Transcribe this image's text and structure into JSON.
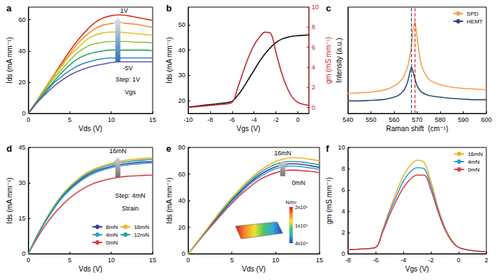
{
  "chart_data": [
    {
      "type": "line",
      "title": "a",
      "x_label": "Vds (V)",
      "y_label": "Ids (mA mm⁻¹)",
      "xlim": [
        0,
        15
      ],
      "xticks": [
        0,
        5,
        10,
        15
      ],
      "ylim": [
        0,
        68
      ],
      "yticks": [
        0,
        20,
        40,
        60
      ],
      "annotations": [
        "1V",
        "-5V",
        "Step: 1V",
        "Vgs"
      ],
      "x": [
        0,
        1,
        2,
        3,
        4,
        5,
        6,
        7,
        8,
        9,
        10,
        11,
        12,
        13,
        14,
        15
      ],
      "series": [
        {
          "color": "#d7301f",
          "values": [
            0,
            8,
            16,
            24,
            32,
            40,
            47,
            53,
            58,
            61,
            62.5,
            63,
            62.5,
            61.5,
            60.5,
            59.5
          ]
        },
        {
          "color": "#f08c2a",
          "values": [
            0,
            8,
            16,
            24,
            31,
            38,
            45,
            50,
            54,
            56.5,
            57.5,
            58,
            57.5,
            57,
            56,
            55
          ]
        },
        {
          "color": "#e8c21c",
          "values": [
            0,
            8,
            15.5,
            23,
            30,
            37,
            42,
            47,
            50,
            51.5,
            52,
            52,
            51.5,
            51,
            50.5,
            50
          ]
        },
        {
          "color": "#8cc63f",
          "values": [
            0,
            7.5,
            15,
            22,
            28,
            34,
            39,
            42.5,
            44.5,
            45.5,
            46,
            46,
            46,
            45.5,
            45.5,
            45
          ]
        },
        {
          "color": "#2ca25f",
          "values": [
            0,
            7,
            14,
            20,
            26,
            31,
            35,
            37.5,
            39,
            40,
            40.5,
            40.5,
            40.5,
            40.5,
            40.5,
            40
          ]
        },
        {
          "color": "#2b8cbe",
          "values": [
            0,
            7,
            13,
            19,
            23.5,
            27.5,
            30.5,
            32.5,
            34,
            35,
            35.5,
            35.5,
            35.5,
            35.5,
            35.5,
            35.5
          ]
        },
        {
          "color": "#6a51a3",
          "values": [
            0,
            6.5,
            12,
            17,
            21,
            24.5,
            27,
            29,
            30.5,
            31.5,
            32.5,
            33,
            33,
            33,
            33,
            33
          ]
        }
      ]
    },
    {
      "type": "line",
      "title": "b",
      "x_label": "Vgs (V)",
      "y_label": "Ids (mA mm⁻¹)",
      "y2_label": "gm (mS mm⁻¹)",
      "xlim": [
        -10,
        1
      ],
      "xticks": [
        -10,
        -8,
        -6,
        -4,
        -2,
        0
      ],
      "ylim": [
        15,
        57
      ],
      "yticks": [
        20,
        30,
        40,
        50
      ],
      "y2lim": [
        -0.6,
        10
      ],
      "y2ticks": [
        0,
        2,
        4,
        6,
        8,
        10
      ],
      "x": [
        -10,
        -9,
        -8,
        -7,
        -6,
        -5.5,
        -5,
        -4.5,
        -4,
        -3.5,
        -3,
        -2.5,
        -2,
        -1.5,
        -1,
        -0.5,
        0,
        1
      ],
      "series": [
        {
          "color": "#111111",
          "values": [
            17.5,
            18,
            18.5,
            19,
            19.8,
            22,
            25,
            28.5,
            32,
            35.5,
            38.5,
            41,
            43,
            44.3,
            45,
            45.5,
            45.7,
            46
          ]
        },
        {
          "color": "#c0282d",
          "axis": "y2",
          "values": [
            0,
            0.1,
            0.2,
            0.3,
            0.5,
            1.9,
            3.5,
            5,
            6.2,
            7,
            7.5,
            7.4,
            5.5,
            3.5,
            2,
            1,
            0.5,
            0.2
          ]
        }
      ]
    },
    {
      "type": "line",
      "title": "c",
      "x_label": "Raman shift  (cm⁻¹)",
      "y_label": "Intensity (a.u.)",
      "xlim": [
        540,
        600
      ],
      "xticks": [
        540,
        550,
        560,
        570,
        580,
        590,
        600
      ],
      "ylim": [
        0.5,
        9
      ],
      "tick_labels": "x",
      "legend": "top right",
      "vlines": [
        {
          "x": 567.6,
          "color": "#2e4a7d",
          "line_style": "dashed"
        },
        {
          "x": 569,
          "color": "#d62728",
          "line_style": "dashed"
        }
      ],
      "x": [
        540,
        545,
        550,
        555,
        558,
        560,
        562,
        564,
        565,
        566,
        567,
        567.6,
        568,
        569,
        570,
        571,
        572,
        574,
        576,
        580,
        585,
        590,
        595,
        600
      ],
      "series": [
        {
          "name": "SPD",
          "color": "#f5a04a",
          "values": [
            2.1,
            2.15,
            2.2,
            2.35,
            2.5,
            2.7,
            2.95,
            3.4,
            3.8,
            4.3,
            5.3,
            6.0,
            6.9,
            7.8,
            6.6,
            5.2,
            4.3,
            3.5,
            3.1,
            2.8,
            2.6,
            2.5,
            2.45,
            2.4
          ]
        },
        {
          "name": "HEMT",
          "color": "#2e4a7d",
          "values": [
            1.5,
            1.5,
            1.55,
            1.6,
            1.7,
            1.8,
            1.95,
            2.3,
            2.6,
            3.1,
            3.9,
            4.2,
            4.0,
            3.3,
            2.7,
            2.4,
            2.2,
            2.0,
            1.9,
            1.8,
            1.7,
            1.65,
            1.6,
            1.6
          ]
        }
      ]
    },
    {
      "type": "line",
      "title": "d",
      "x_label": "Vds (V)",
      "y_label": "Ids (mA mm⁻¹)",
      "xlim": [
        0,
        15
      ],
      "xticks": [
        0,
        5,
        10,
        15
      ],
      "ylim": [
        0,
        45
      ],
      "yticks": [
        0,
        15,
        30,
        45
      ],
      "legend": "bottom right",
      "annotations": [
        "16mN",
        "Step: 4mN",
        "Strain"
      ],
      "x": [
        0,
        1,
        2,
        3,
        4,
        5,
        6,
        7,
        8,
        9,
        10,
        11,
        12,
        13,
        14,
        15
      ],
      "series": [
        {
          "name": "8mN",
          "color": "#3d3d99",
          "values": [
            0,
            7.2,
            13.5,
            19,
            23.8,
            27.5,
            30.5,
            33,
            34.8,
            36,
            37,
            37.7,
            38.2,
            38.6,
            38.9,
            39
          ]
        },
        {
          "name": "4mN",
          "color": "#2e9fd9",
          "values": [
            0,
            7,
            13.2,
            18.6,
            23.3,
            27,
            30,
            32.4,
            34.2,
            35.5,
            36.4,
            37.1,
            37.6,
            38,
            38.3,
            38.5
          ]
        },
        {
          "name": "0mN",
          "color": "#d6404e",
          "values": [
            0,
            6.3,
            11.8,
            16.5,
            20.3,
            23.6,
            26.2,
            28.3,
            29.9,
            31,
            31.8,
            32.4,
            32.8,
            33,
            33.2,
            33.3
          ]
        },
        {
          "name": "16mN",
          "color": "#f0b429",
          "values": [
            0,
            7.4,
            14,
            19.7,
            24.6,
            28.5,
            31.6,
            34.2,
            36,
            37.3,
            38.3,
            39.1,
            39.7,
            40.1,
            40.4,
            40.6
          ]
        },
        {
          "name": "12mN",
          "color": "#2aa198",
          "values": [
            0,
            7.3,
            13.7,
            19.3,
            24.2,
            28,
            31,
            33.6,
            35.4,
            36.7,
            37.7,
            38.5,
            39,
            39.4,
            39.7,
            39.9
          ]
        }
      ]
    },
    {
      "type": "line",
      "title": "e",
      "x_label": "Vds (V)",
      "y_label": "Ids (mA mm⁻¹)",
      "xlim": [
        0,
        15
      ],
      "xticks": [
        0,
        5,
        10,
        15
      ],
      "ylim": [
        0,
        80
      ],
      "yticks": [
        0,
        20,
        40,
        60,
        80
      ],
      "annotations": [
        "16mN",
        "0mN"
      ],
      "colorbar": {
        "title": "N/m²",
        "range": [
          40000,
          2000000
        ],
        "ticks": [
          {
            "value": 2000000,
            "label": "2x10⁶"
          },
          {
            "value": 1000000,
            "label": "1x10⁶"
          },
          {
            "value": 40000,
            "label": "4x10⁴"
          }
        ],
        "colors": [
          "#2c3fb8",
          "#2fa8e0",
          "#4ec36a",
          "#f2e22c",
          "#f28c28",
          "#d7191c"
        ]
      },
      "x": [
        0,
        1,
        2,
        3,
        4,
        5,
        6,
        7,
        8,
        9,
        10,
        11,
        12,
        13,
        14,
        15
      ],
      "series": [
        {
          "color": "#d6404e",
          "values": [
            0,
            8,
            16,
            23.5,
            31,
            38,
            44.5,
            50,
            55,
            58.5,
            61,
            62.5,
            63,
            62.5,
            62,
            61
          ]
        },
        {
          "color": "#2e9fd9",
          "values": [
            0,
            8.2,
            16.5,
            24.5,
            32,
            39.5,
            46,
            52,
            57,
            61,
            64,
            65.5,
            66,
            65.5,
            64.5,
            63.5
          ]
        },
        {
          "color": "#3d3d99",
          "values": [
            0,
            8.3,
            16.8,
            25,
            32.8,
            40.3,
            47,
            53.2,
            58.4,
            62.5,
            65.5,
            67.2,
            67.7,
            67.2,
            66.2,
            65
          ]
        },
        {
          "color": "#2aa198",
          "values": [
            0,
            8.5,
            17,
            25.5,
            33.5,
            41,
            48,
            54.5,
            60,
            64.2,
            67.3,
            69,
            69.5,
            69,
            68,
            67
          ]
        },
        {
          "color": "#f0b429",
          "values": [
            0,
            8.7,
            17.5,
            26.2,
            34.5,
            42.3,
            49.5,
            56,
            61.5,
            66,
            69.5,
            71.5,
            72.3,
            72,
            71,
            70
          ]
        }
      ]
    },
    {
      "type": "line",
      "title": "f",
      "x_label": "Vgs (V)",
      "y_label": "gm (mS mm⁻¹)",
      "xlim": [
        -8,
        2
      ],
      "xticks": [
        -8,
        -6,
        -4,
        -2,
        0,
        2
      ],
      "ylim": [
        0,
        10
      ],
      "yticks": [
        0,
        2,
        4,
        6,
        8,
        10
      ],
      "legend": "top right",
      "x": [
        -8,
        -7,
        -6,
        -5.5,
        -5,
        -4.5,
        -4,
        -3.5,
        -3,
        -2.5,
        -2,
        -1.5,
        -1,
        -0.5,
        0,
        1,
        2
      ],
      "series": [
        {
          "name": "16mN",
          "color": "#f0b429",
          "values": [
            0.4,
            0.45,
            0.6,
            2.2,
            4.1,
            5.8,
            7.3,
            8.3,
            8.8,
            8.6,
            6.8,
            4.4,
            2.5,
            1.3,
            0.6,
            0.3,
            0.2
          ]
        },
        {
          "name": "4mN",
          "color": "#2e9fd9",
          "values": [
            0.4,
            0.45,
            0.6,
            2.1,
            3.9,
            5.4,
            6.8,
            7.7,
            8.1,
            8,
            6.4,
            4.2,
            2.4,
            1.2,
            0.6,
            0.3,
            0.2
          ]
        },
        {
          "name": "0mN",
          "color": "#d6404e",
          "values": [
            0.4,
            0.45,
            0.6,
            2,
            3.6,
            5,
            6.2,
            7,
            7.4,
            7.4,
            6,
            4,
            2.3,
            1.2,
            0.6,
            0.3,
            0.2
          ]
        }
      ]
    }
  ]
}
